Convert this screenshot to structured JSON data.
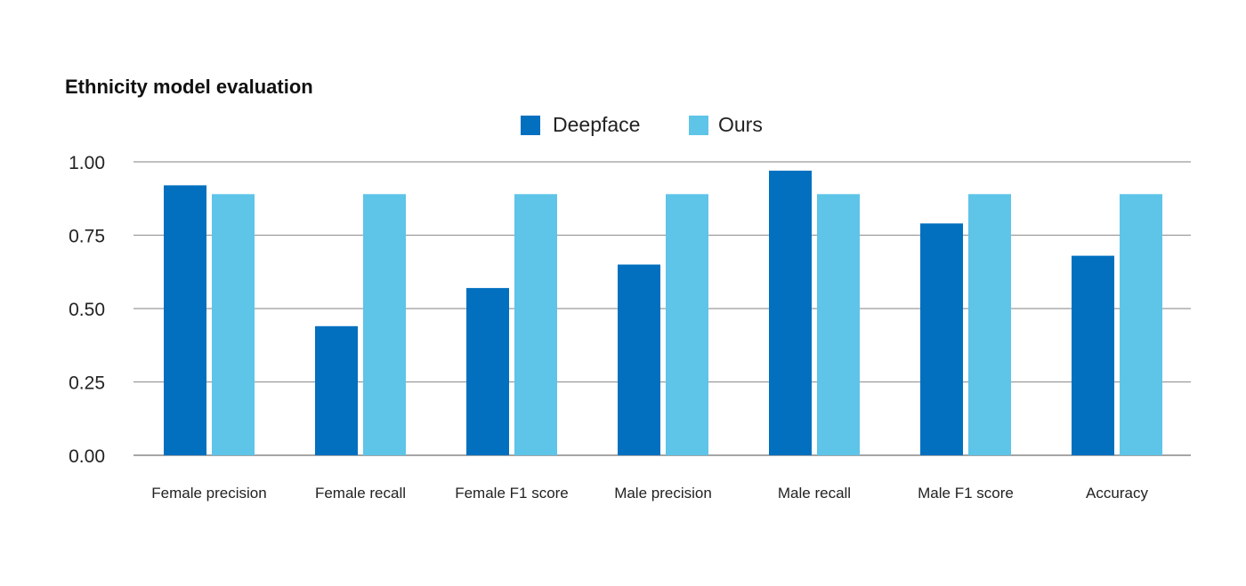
{
  "chart_data": {
    "type": "bar",
    "title": "Ethnicity model evaluation",
    "xlabel": "",
    "ylabel": "",
    "categories": [
      "Female precision",
      "Female recall",
      "Female F1 score",
      "Male precision",
      "Male recall",
      "Male F1 score",
      "Accuracy"
    ],
    "series": [
      {
        "name": "Deepface",
        "color": "#0270bf",
        "values": [
          0.92,
          0.44,
          0.57,
          0.65,
          0.97,
          0.79,
          0.68
        ]
      },
      {
        "name": "Ours",
        "color": "#5ec4e8",
        "values": [
          0.89,
          0.89,
          0.89,
          0.89,
          0.89,
          0.89,
          0.89
        ]
      }
    ],
    "ylim": [
      0,
      1
    ],
    "yticks": [
      "0.00",
      "0.25",
      "0.50",
      "0.75",
      "1.00"
    ],
    "ytick_values": [
      0,
      0.25,
      0.5,
      0.75,
      1.0
    ],
    "grid": true,
    "legend_position": "top-center",
    "colors": {
      "grid": "#9a9a9a",
      "axis": "#888888"
    }
  }
}
